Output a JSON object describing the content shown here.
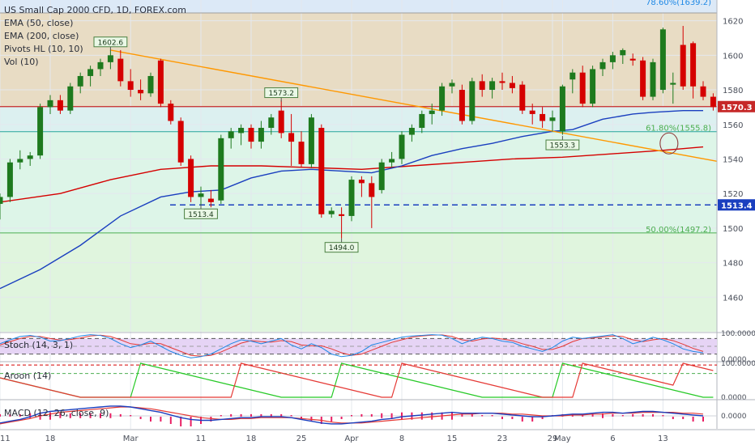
{
  "chart_data": {
    "type": "candlestick",
    "title": "US Small Cap 2000 CFD, 1D, FOREX.com",
    "indicators": [
      "EMA (50, close)",
      "EMA (200, close)",
      "Pivots HL (10, 10)",
      "Vol (10)"
    ],
    "y_range": [
      1440,
      1632
    ],
    "y_ticks": [
      1460,
      1480,
      1500,
      1520,
      1540,
      1560,
      1580,
      1600,
      1620
    ],
    "x_ticks": [
      {
        "label": "11",
        "idx": 0
      },
      {
        "label": "18",
        "idx": 5
      },
      {
        "label": "Mar",
        "idx": 13
      },
      {
        "label": "11",
        "idx": 20
      },
      {
        "label": "18",
        "idx": 25
      },
      {
        "label": "25",
        "idx": 30
      },
      {
        "label": "Apr",
        "idx": 35
      },
      {
        "label": "8",
        "idx": 40
      },
      {
        "label": "15",
        "idx": 45
      },
      {
        "label": "23",
        "idx": 50
      },
      {
        "label": "29",
        "idx": 55
      },
      {
        "label": "May",
        "idx": 56
      },
      {
        "label": "6",
        "idx": 61
      },
      {
        "label": "13",
        "idx": 66
      }
    ],
    "candles": [
      {
        "o": 1514,
        "h": 1520,
        "l": 1505,
        "c": 1518
      },
      {
        "o": 1518,
        "h": 1540,
        "l": 1515,
        "c": 1538
      },
      {
        "o": 1538,
        "h": 1545,
        "l": 1534,
        "c": 1540
      },
      {
        "o": 1540,
        "h": 1544,
        "l": 1536,
        "c": 1542
      },
      {
        "o": 1542,
        "h": 1572,
        "l": 1540,
        "c": 1570
      },
      {
        "o": 1570,
        "h": 1577,
        "l": 1566,
        "c": 1574
      },
      {
        "o": 1574,
        "h": 1577,
        "l": 1566,
        "c": 1568
      },
      {
        "o": 1568,
        "h": 1584,
        "l": 1566,
        "c": 1582
      },
      {
        "o": 1582,
        "h": 1590,
        "l": 1578,
        "c": 1588
      },
      {
        "o": 1588,
        "h": 1594,
        "l": 1582,
        "c": 1592
      },
      {
        "o": 1592,
        "h": 1598,
        "l": 1588,
        "c": 1596
      },
      {
        "o": 1596,
        "h": 1603,
        "l": 1592,
        "c": 1600
      },
      {
        "o": 1598,
        "h": 1603,
        "l": 1582,
        "c": 1585
      },
      {
        "o": 1585,
        "h": 1592,
        "l": 1576,
        "c": 1580
      },
      {
        "o": 1580,
        "h": 1586,
        "l": 1574,
        "c": 1578
      },
      {
        "o": 1578,
        "h": 1590,
        "l": 1576,
        "c": 1588
      },
      {
        "o": 1597,
        "h": 1598,
        "l": 1570,
        "c": 1572
      },
      {
        "o": 1572,
        "h": 1574,
        "l": 1560,
        "c": 1562
      },
      {
        "o": 1562,
        "h": 1564,
        "l": 1536,
        "c": 1538
      },
      {
        "o": 1540,
        "h": 1542,
        "l": 1515,
        "c": 1518
      },
      {
        "o": 1518,
        "h": 1524,
        "l": 1513,
        "c": 1520
      },
      {
        "o": 1517,
        "h": 1522,
        "l": 1512,
        "c": 1515
      },
      {
        "o": 1516,
        "h": 1554,
        "l": 1514,
        "c": 1552
      },
      {
        "o": 1552,
        "h": 1558,
        "l": 1546,
        "c": 1556
      },
      {
        "o": 1555,
        "h": 1560,
        "l": 1548,
        "c": 1558
      },
      {
        "o": 1558,
        "h": 1560,
        "l": 1546,
        "c": 1550
      },
      {
        "o": 1550,
        "h": 1562,
        "l": 1546,
        "c": 1558
      },
      {
        "o": 1558,
        "h": 1566,
        "l": 1554,
        "c": 1564
      },
      {
        "o": 1568,
        "h": 1574,
        "l": 1552,
        "c": 1555
      },
      {
        "o": 1555,
        "h": 1566,
        "l": 1536,
        "c": 1550
      },
      {
        "o": 1550,
        "h": 1556,
        "l": 1535,
        "c": 1537
      },
      {
        "o": 1537,
        "h": 1566,
        "l": 1535,
        "c": 1564
      },
      {
        "o": 1558,
        "h": 1560,
        "l": 1506,
        "c": 1508
      },
      {
        "o": 1508,
        "h": 1512,
        "l": 1506,
        "c": 1510
      },
      {
        "o": 1508,
        "h": 1512,
        "l": 1494,
        "c": 1507
      },
      {
        "o": 1507,
        "h": 1530,
        "l": 1504,
        "c": 1528
      },
      {
        "o": 1528,
        "h": 1530,
        "l": 1518,
        "c": 1526
      },
      {
        "o": 1526,
        "h": 1530,
        "l": 1500,
        "c": 1518
      },
      {
        "o": 1522,
        "h": 1540,
        "l": 1520,
        "c": 1538
      },
      {
        "o": 1538,
        "h": 1544,
        "l": 1535,
        "c": 1540
      },
      {
        "o": 1540,
        "h": 1556,
        "l": 1537,
        "c": 1554
      },
      {
        "o": 1554,
        "h": 1560,
        "l": 1550,
        "c": 1558
      },
      {
        "o": 1558,
        "h": 1568,
        "l": 1555,
        "c": 1566
      },
      {
        "o": 1566,
        "h": 1572,
        "l": 1560,
        "c": 1568
      },
      {
        "o": 1568,
        "h": 1584,
        "l": 1565,
        "c": 1582
      },
      {
        "o": 1582,
        "h": 1586,
        "l": 1578,
        "c": 1584
      },
      {
        "o": 1580,
        "h": 1583,
        "l": 1560,
        "c": 1562
      },
      {
        "o": 1562,
        "h": 1587,
        "l": 1560,
        "c": 1585
      },
      {
        "o": 1585,
        "h": 1589,
        "l": 1576,
        "c": 1580
      },
      {
        "o": 1580,
        "h": 1587,
        "l": 1575,
        "c": 1585
      },
      {
        "o": 1585,
        "h": 1590,
        "l": 1580,
        "c": 1584
      },
      {
        "o": 1584,
        "h": 1588,
        "l": 1578,
        "c": 1581
      },
      {
        "o": 1583,
        "h": 1585,
        "l": 1566,
        "c": 1568
      },
      {
        "o": 1568,
        "h": 1572,
        "l": 1560,
        "c": 1566
      },
      {
        "o": 1566,
        "h": 1570,
        "l": 1558,
        "c": 1562
      },
      {
        "o": 1562,
        "h": 1568,
        "l": 1556,
        "c": 1564
      },
      {
        "o": 1556,
        "h": 1583,
        "l": 1554,
        "c": 1582
      },
      {
        "o": 1586,
        "h": 1592,
        "l": 1578,
        "c": 1590
      },
      {
        "o": 1590,
        "h": 1594,
        "l": 1570,
        "c": 1572
      },
      {
        "o": 1572,
        "h": 1594,
        "l": 1570,
        "c": 1592
      },
      {
        "o": 1592,
        "h": 1598,
        "l": 1588,
        "c": 1596
      },
      {
        "o": 1596,
        "h": 1602,
        "l": 1592,
        "c": 1600
      },
      {
        "o": 1600,
        "h": 1604,
        "l": 1595,
        "c": 1603
      },
      {
        "o": 1598,
        "h": 1601,
        "l": 1594,
        "c": 1597
      },
      {
        "o": 1597,
        "h": 1599,
        "l": 1574,
        "c": 1576
      },
      {
        "o": 1576,
        "h": 1598,
        "l": 1574,
        "c": 1596
      },
      {
        "o": 1580,
        "h": 1616,
        "l": 1578,
        "c": 1615
      },
      {
        "o": 1583,
        "h": 1590,
        "l": 1572,
        "c": 1584
      },
      {
        "o": 1606,
        "h": 1617,
        "l": 1580,
        "c": 1582
      },
      {
        "o": 1607,
        "h": 1608,
        "l": 1575,
        "c": 1582
      },
      {
        "o": 1582,
        "h": 1585,
        "l": 1574,
        "c": 1576
      },
      {
        "o": 1576,
        "h": 1578,
        "l": 1568,
        "c": 1570
      }
    ],
    "ema50": [
      [
        0,
        1465
      ],
      [
        4,
        1476
      ],
      [
        8,
        1490
      ],
      [
        12,
        1507
      ],
      [
        16,
        1518
      ],
      [
        19,
        1521
      ],
      [
        22,
        1522
      ],
      [
        25,
        1529
      ],
      [
        28,
        1533
      ],
      [
        31,
        1534
      ],
      [
        34,
        1533
      ],
      [
        37,
        1532
      ],
      [
        40,
        1536
      ],
      [
        43,
        1542
      ],
      [
        46,
        1546
      ],
      [
        49,
        1549
      ],
      [
        52,
        1553
      ],
      [
        55,
        1556
      ],
      [
        57,
        1557
      ],
      [
        60,
        1563
      ],
      [
        63,
        1566
      ],
      [
        65,
        1567
      ],
      [
        68,
        1568
      ],
      [
        70,
        1568
      ]
    ],
    "ema200": [
      [
        0,
        1515
      ],
      [
        6,
        1520
      ],
      [
        11,
        1528
      ],
      [
        16,
        1534
      ],
      [
        21,
        1536
      ],
      [
        26,
        1536
      ],
      [
        31,
        1535
      ],
      [
        36,
        1534
      ],
      [
        41,
        1536
      ],
      [
        46,
        1538
      ],
      [
        51,
        1540
      ],
      [
        56,
        1541
      ],
      [
        61,
        1543
      ],
      [
        66,
        1545
      ],
      [
        70,
        1547
      ]
    ],
    "trendline": [
      [
        11,
        1603
      ],
      [
        72,
        1538
      ]
    ],
    "pivots": [
      {
        "label": "1602.6",
        "idx": 11,
        "price": 1602.6,
        "pos": "above"
      },
      {
        "label": "1573.2",
        "idx": 28,
        "price": 1573.2,
        "pos": "above"
      },
      {
        "label": "1513.4",
        "idx": 20,
        "price": 1513.4,
        "pos": "below"
      },
      {
        "label": "1494.0",
        "idx": 34,
        "price": 1494.0,
        "pos": "below"
      },
      {
        "label": "1553.3",
        "idx": 56,
        "price": 1553.3,
        "pos": "below"
      }
    ],
    "fib_levels": [
      {
        "label": "78.60%(1639.2)",
        "price": 1632
      },
      {
        "label": "61.80%(1555.8)",
        "price": 1555.8
      },
      {
        "label": "50.00%(1497.2)",
        "price": 1497.2
      }
    ],
    "fib_zone_top_price": 1624.5,
    "horizontal_levels": [
      {
        "price": 1570.3,
        "label": "1570.3",
        "color": "#c62828",
        "style": "solid"
      },
      {
        "price": 1513.4,
        "label": "1513.4",
        "color": "#1a3fbf",
        "style": "dashed"
      }
    ],
    "stoch": {
      "label": "Stoch (14, 3, 1)",
      "axis_labels": [
        "100.0000",
        "0.0000"
      ],
      "k": [
        60,
        75,
        88,
        92,
        85,
        70,
        72,
        80,
        90,
        95,
        92,
        80,
        60,
        45,
        55,
        70,
        50,
        30,
        15,
        5,
        10,
        20,
        40,
        60,
        75,
        70,
        60,
        70,
        80,
        55,
        40,
        60,
        45,
        20,
        10,
        15,
        30,
        55,
        65,
        75,
        85,
        90,
        92,
        95,
        93,
        80,
        60,
        75,
        85,
        80,
        70,
        65,
        50,
        40,
        30,
        45,
        70,
        85,
        80,
        85,
        90,
        95,
        80,
        60,
        70,
        85,
        75,
        60,
        40,
        30,
        25
      ],
      "d": [
        55,
        68,
        80,
        88,
        88,
        80,
        74,
        76,
        82,
        90,
        93,
        88,
        75,
        60,
        55,
        62,
        60,
        45,
        30,
        15,
        12,
        15,
        28,
        45,
        62,
        72,
        68,
        66,
        72,
        68,
        55,
        52,
        52,
        40,
        25,
        15,
        20,
        35,
        50,
        65,
        75,
        85,
        90,
        93,
        94,
        88,
        75,
        70,
        78,
        82,
        78,
        72,
        60,
        50,
        38,
        38,
        50,
        68,
        80,
        82,
        86,
        90,
        88,
        75,
        68,
        75,
        80,
        72,
        58,
        42,
        30
      ]
    },
    "aroon": {
      "label": "Aroon (14)",
      "axis_labels": [
        "100.0000",
        "0.0000"
      ],
      "up_breaks": [
        14,
        34,
        56
      ],
      "down_breaks": [
        24,
        40,
        58,
        68
      ]
    },
    "macd": {
      "label": "MACD (12, 26, close, 9)",
      "axis_label": "0.0000",
      "macd": [
        -8,
        -6,
        -4,
        -1,
        3,
        5,
        6,
        7,
        8,
        9,
        10,
        11,
        11,
        10,
        8,
        6,
        4,
        1,
        -2,
        -4,
        -5,
        -5,
        -4,
        -3,
        -2,
        -2,
        -1,
        -1,
        -1,
        -2,
        -4,
        -6,
        -8,
        -9,
        -9,
        -8,
        -7,
        -6,
        -4,
        -3,
        -1,
        0,
        1,
        2,
        3,
        4,
        3,
        3,
        3,
        3,
        2,
        1,
        0,
        -1,
        -1,
        0,
        1,
        2,
        2,
        3,
        4,
        4,
        3,
        4,
        5,
        5,
        4,
        3,
        2,
        1,
        0
      ],
      "signal": [
        -9,
        -7,
        -5,
        -3,
        0,
        2,
        4,
        5,
        6,
        7,
        8,
        9,
        10,
        10,
        9,
        8,
        6,
        4,
        2,
        0,
        -2,
        -3,
        -4,
        -4,
        -3,
        -3,
        -2,
        -2,
        -2,
        -2,
        -3,
        -4,
        -5,
        -7,
        -8,
        -8,
        -8,
        -7,
        -6,
        -5,
        -4,
        -3,
        -2,
        -1,
        0,
        1,
        2,
        2,
        3,
        3,
        3,
        2,
        2,
        1,
        0,
        0,
        0,
        1,
        1,
        2,
        2,
        3,
        3,
        3,
        4,
        4,
        4,
        4,
        3,
        3,
        2
      ]
    },
    "colors": {
      "up": "#1e7a1e",
      "down": "#d50000",
      "ema50": "#1a3fbf",
      "ema200": "#d50000",
      "trend": "#ff9800",
      "fib_green": "#4caf50",
      "last_price": "#c62828"
    }
  }
}
